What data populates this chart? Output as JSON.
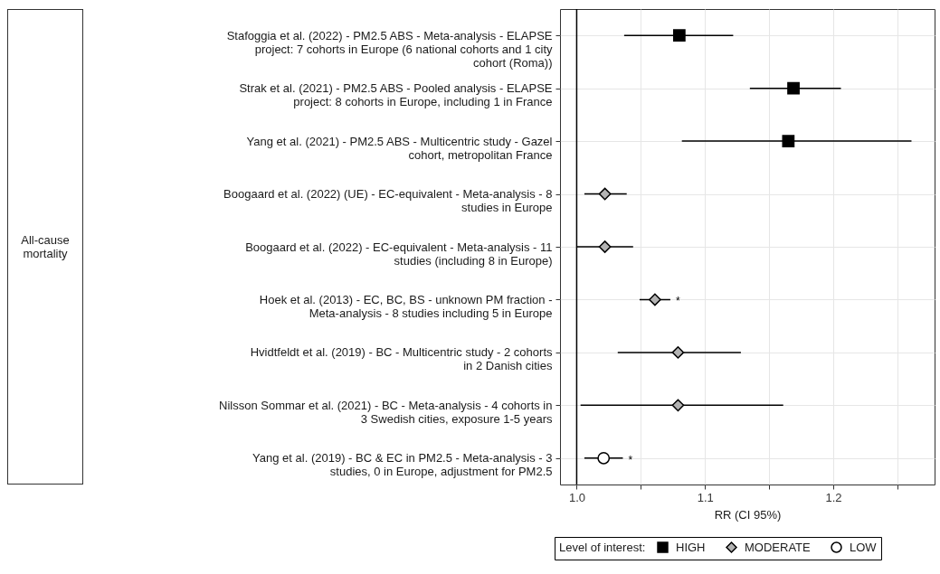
{
  "chart_data": {
    "type": "scatter",
    "orientation": "horizontal",
    "xlabel": "RR (CI 95%)",
    "legend_title": "Level of interest:",
    "legend": "bottom right",
    "grid": true,
    "categories": [
      "Stafoggia et al. (2022) - PM2.5 ABS - Meta-analysis - ELAPSE\nproject: 7 cohorts in Europe (6 national cohorts and 1 city\ncohort (Roma))",
      "Strak et al. (2021) - PM2.5 ABS - Pooled analysis - ELAPSE\nproject: 8 cohorts in Europe, including 1 in France",
      "Yang et al. (2021) - PM2.5 ABS - Multicentric study - Gazel\ncohort, metropolitan France",
      "Boogaard et al. (2022) (UE) - EC-equivalent - Meta-analysis - 8\nstudies in Europe",
      "Boogaard et al. (2022) - EC-equivalent - Meta-analysis - 11\nstudies (including 8 in Europe)",
      "Hoek et al. (2013) - EC, BC, BS - unknown PM fraction -\nMeta-analysis - 8 studies including 5 in Europe",
      "Hvidtfeldt et al. (2019) - BC - Multicentric study - 2 cohorts\nin 2 Danish cities",
      "Nilsson Sommar et al. (2021) - BC - Meta-analysis - 4 cohorts in\n3 Swedish cities, exposure 1-5 years",
      "Yang et al. (2019) - BC & EC in PM2.5 - Meta-analysis - 3\nstudies, 0 in Europe, adjustment for PM2.5"
    ],
    "series": [
      {
        "name": "HIGH",
        "color": "#000000",
        "marker": "square",
        "values": [
          1.08,
          1.169,
          1.165,
          null,
          null,
          null,
          null,
          null,
          null
        ],
        "errors": [
          [
            1.037,
            1.122
          ],
          [
            1.135,
            1.206
          ],
          [
            1.082,
            1.261
          ],
          null,
          null,
          null,
          null,
          null,
          null
        ]
      },
      {
        "name": "MODERATE",
        "color": "#b3b3b3",
        "marker": "diamond",
        "values": [
          null,
          null,
          null,
          1.022,
          1.022,
          1.061,
          1.079,
          1.079,
          null
        ],
        "value_labels": [
          null,
          null,
          null,
          null,
          null,
          "*",
          null,
          null,
          null
        ],
        "errors": [
          null,
          null,
          null,
          [
            1.006,
            1.039
          ],
          [
            1.0,
            1.044
          ],
          [
            1.049,
            1.073
          ],
          [
            1.032,
            1.128
          ],
          [
            1.003,
            1.161
          ],
          null
        ]
      },
      {
        "name": "LOW",
        "color": "#ffffff",
        "marker": "circle",
        "values": [
          null,
          null,
          null,
          null,
          null,
          null,
          null,
          null,
          1.021
        ],
        "value_labels": [
          null,
          null,
          null,
          null,
          null,
          null,
          null,
          null,
          "*"
        ],
        "errors": [
          null,
          null,
          null,
          null,
          null,
          null,
          null,
          null,
          [
            1.006,
            1.036
          ]
        ]
      }
    ],
    "xlim": [
      0.987,
      1.279
    ],
    "xticks": [
      {
        "value": 1,
        "label": "1.0"
      },
      {
        "value": 1.05,
        "label": null
      },
      1.1,
      {
        "value": 1.15,
        "label": null
      },
      1.2,
      {
        "value": 1.25,
        "label": null
      }
    ],
    "ref_lines": [
      {
        "axis": "x",
        "value": 1,
        "color": "#000000"
      }
    ],
    "annotations": [
      "All-cause mortality"
    ]
  }
}
